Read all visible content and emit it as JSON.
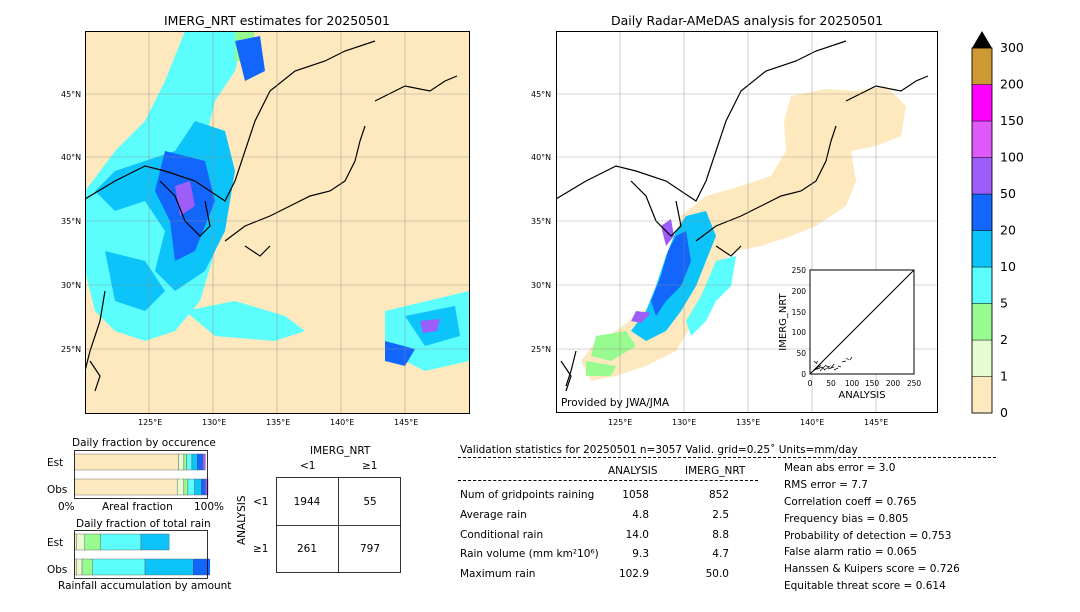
{
  "left_map": {
    "title": "IMERG_NRT estimates for 20250501",
    "lat_labels": [
      "45°N",
      "40°N",
      "35°N",
      "30°N",
      "25°N"
    ],
    "lon_labels": [
      "125°E",
      "130°E",
      "135°E",
      "140°E",
      "145°E"
    ]
  },
  "right_map": {
    "title": "Daily Radar-AMeDAS analysis for 20250501",
    "credit": "Provided by JWA/JMA",
    "lat_labels": [
      "45°N",
      "40°N",
      "35°N",
      "30°N",
      "25°N"
    ],
    "lon_labels": [
      "125°E",
      "130°E",
      "135°E",
      "140°E",
      "145°E"
    ]
  },
  "scatter_inset": {
    "ylabel": "IMERG_NRT",
    "xlabel": "ANALYSIS",
    "ticks": [
      "0",
      "50",
      "100",
      "150",
      "200",
      "250"
    ]
  },
  "colorbar": {
    "labels": [
      "0",
      "1",
      "2",
      "5",
      "10",
      "20",
      "50",
      "100",
      "150",
      "200",
      "300"
    ],
    "colors": [
      "#fde9bd",
      "#e7fbd1",
      "#98fb90",
      "#5bfdfd",
      "#0dc4fa",
      "#1366fb",
      "#9c5df8",
      "#df59f9",
      "#ff00ff",
      "#cc9933"
    ],
    "extend_color": "#000000"
  },
  "fraction_occurrence": {
    "title": "Daily fraction by occurence",
    "rows": [
      "Est",
      "Obs"
    ],
    "axis_left": "0%",
    "axis_mid": "Areal fraction",
    "axis_right": "100%"
  },
  "fraction_rain": {
    "title": "Daily fraction of total rain",
    "rows": [
      "Est",
      "Obs"
    ],
    "footer": "Rainfall accumulation by amount"
  },
  "contingency": {
    "col_title": "IMERG_NRT",
    "col_labels": [
      "<1",
      "≥1"
    ],
    "row_title": "ANALYSIS",
    "row_labels": [
      "<1",
      "≥1"
    ],
    "cells": [
      [
        "1944",
        "55"
      ],
      [
        "261",
        "797"
      ]
    ]
  },
  "validation": {
    "header": "Validation statistics for 20250501  n=3057 Valid. grid=0.25˚ Units=mm/day",
    "col_analysis": "ANALYSIS",
    "col_imerg": "IMERG_NRT",
    "rows": [
      {
        "label": "Num of gridpoints raining",
        "analysis": "1058",
        "imerg": "852"
      },
      {
        "label": "Average rain",
        "analysis": "4.8",
        "imerg": "2.5"
      },
      {
        "label": "Conditional rain",
        "analysis": "14.0",
        "imerg": "8.8"
      },
      {
        "label": "Rain volume (mm km²10⁶)",
        "analysis": "9.3",
        "imerg": "4.7"
      },
      {
        "label": "Maximum rain",
        "analysis": "102.9",
        "imerg": "50.0"
      }
    ],
    "scores": [
      "Mean abs error =    3.0",
      "RMS error =    7.7",
      "Correlation coeff =  0.765",
      "Frequency bias =  0.805",
      "Probability of detection =  0.753",
      "False alarm ratio =  0.065",
      "Hanssen & Kuipers score =  0.726",
      "Equitable threat score =  0.614"
    ]
  },
  "chart_data": {
    "type": "table",
    "contingency": {
      "no_no": 1944,
      "no_yes": 55,
      "yes_no": 261,
      "yes_yes": 797
    },
    "fraction_occurrence": {
      "est": [
        0.78,
        0.04,
        0.02,
        0.04,
        0.04,
        0.04,
        0.02
      ],
      "obs": [
        0.77,
        0.05,
        0.03,
        0.05,
        0.05,
        0.03,
        0.02
      ]
    },
    "fraction_rain": {
      "est": [
        0.02,
        0.06,
        0.12,
        0.3,
        0.21,
        0.0
      ],
      "obs": [
        0.02,
        0.04,
        0.08,
        0.39,
        0.36,
        0.14
      ]
    }
  }
}
